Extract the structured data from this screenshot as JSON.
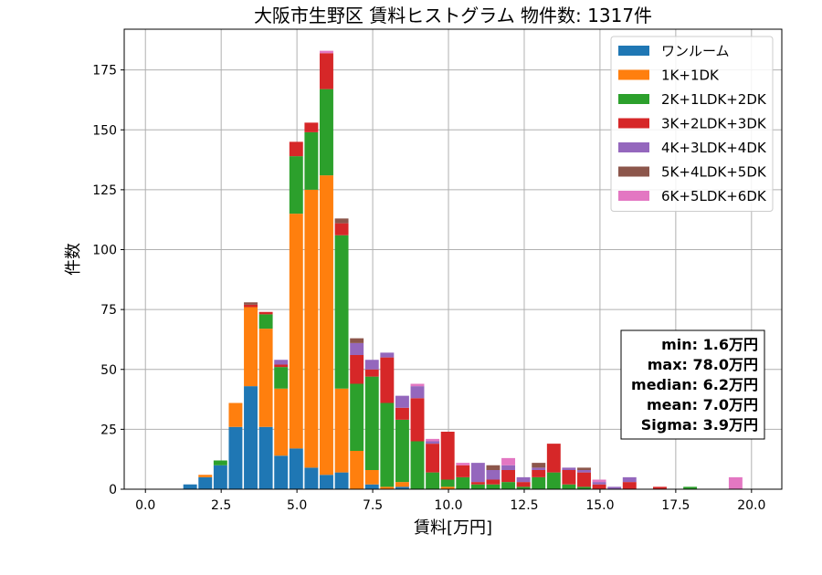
{
  "chart_data": {
    "type": "bar",
    "stacked": true,
    "title": "大阪市生野区 賃料ヒストグラム  物件数: 1317件",
    "xlabel": "賃料[万円]",
    "ylabel": "件数",
    "xlim": [
      -0.7,
      21.0
    ],
    "ylim": [
      0,
      192
    ],
    "xticks": [
      0.0,
      2.5,
      5.0,
      7.5,
      10.0,
      12.5,
      15.0,
      17.5,
      20.0
    ],
    "xtick_labels": [
      "0.0",
      "2.5",
      "5.0",
      "7.5",
      "10.0",
      "12.5",
      "15.0",
      "17.5",
      "20.0"
    ],
    "yticks": [
      0,
      25,
      50,
      75,
      100,
      125,
      150,
      175
    ],
    "ytick_labels": [
      "0",
      "25",
      "50",
      "75",
      "100",
      "125",
      "150",
      "175"
    ],
    "grid": true,
    "legend_position": "top-right",
    "bin_width": 0.5,
    "x": [
      1.5,
      2.0,
      2.5,
      3.0,
      3.5,
      4.0,
      4.5,
      5.0,
      5.5,
      6.0,
      6.5,
      7.0,
      7.5,
      8.0,
      8.5,
      9.0,
      9.5,
      10.0,
      10.5,
      11.0,
      11.5,
      12.0,
      12.5,
      13.0,
      13.5,
      14.0,
      14.5,
      15.0,
      15.5,
      16.0,
      16.5,
      17.0,
      17.5,
      18.0,
      18.5,
      19.0,
      19.5
    ],
    "series": [
      {
        "name": "ワンルーム",
        "color": "#1f77b4",
        "values": [
          2,
          5,
          10,
          26,
          43,
          26,
          14,
          17,
          9,
          6,
          7,
          0,
          2,
          0,
          1,
          0,
          0,
          0,
          0,
          0,
          0,
          0,
          0,
          0,
          0,
          0,
          0,
          0,
          0,
          0,
          0,
          0,
          0,
          0,
          0,
          0,
          0
        ]
      },
      {
        "name": "1K+1DK",
        "color": "#ff7f0e",
        "values": [
          0,
          1,
          0,
          10,
          33,
          41,
          28,
          98,
          116,
          125,
          35,
          16,
          6,
          1,
          2,
          0,
          0,
          1,
          0,
          0,
          0,
          0,
          0,
          0,
          0,
          0,
          0,
          0,
          0,
          0,
          0,
          0,
          0,
          0,
          0,
          0,
          0
        ]
      },
      {
        "name": "2K+1LDK+2DK",
        "color": "#2ca02c",
        "values": [
          0,
          0,
          2,
          0,
          0,
          6,
          9,
          24,
          24,
          36,
          64,
          28,
          39,
          35,
          26,
          20,
          7,
          3,
          5,
          2,
          2,
          3,
          1,
          5,
          7,
          2,
          1,
          0,
          0,
          0,
          0,
          0,
          0,
          1,
          0,
          0,
          0
        ]
      },
      {
        "name": "3K+2LDK+3DK",
        "color": "#d62728",
        "values": [
          0,
          0,
          0,
          0,
          1,
          1,
          1,
          6,
          4,
          15,
          5,
          12,
          3,
          19,
          5,
          18,
          12,
          20,
          5,
          1,
          2,
          5,
          2,
          3,
          12,
          6,
          6,
          2,
          0,
          3,
          0,
          1,
          0,
          0,
          0,
          0,
          0
        ]
      },
      {
        "name": "4K+3LDK+4DK",
        "color": "#9467bd",
        "values": [
          0,
          0,
          0,
          0,
          0,
          0,
          2,
          0,
          0,
          0,
          0,
          5,
          4,
          2,
          5,
          5,
          1,
          0,
          0,
          8,
          4,
          2,
          2,
          1,
          0,
          1,
          1,
          1,
          1,
          2,
          0,
          0,
          0,
          0,
          0,
          0,
          0
        ]
      },
      {
        "name": "5K+4LDK+5DK",
        "color": "#8c564b",
        "values": [
          0,
          0,
          0,
          0,
          1,
          0,
          0,
          0,
          0,
          0,
          2,
          2,
          0,
          0,
          0,
          0,
          0,
          0,
          0,
          0,
          2,
          0,
          0,
          2,
          0,
          0,
          1,
          0,
          0,
          0,
          0,
          0,
          0,
          0,
          0,
          0,
          0
        ]
      },
      {
        "name": "6K+5LDK+6DK",
        "color": "#e377c2",
        "values": [
          0,
          0,
          0,
          0,
          0,
          0,
          0,
          0,
          0,
          1,
          0,
          0,
          0,
          0,
          0,
          1,
          1,
          0,
          1,
          0,
          0,
          3,
          0,
          0,
          0,
          0,
          0,
          1,
          0,
          0,
          0,
          0,
          0,
          0,
          0,
          0,
          5
        ]
      }
    ],
    "stats_box": {
      "position": "right-middle",
      "lines": [
        "min: 1.6万円",
        "max: 78.0万円",
        "median: 6.2万円",
        "mean: 7.0万円",
        "Sigma: 3.9万円"
      ]
    }
  }
}
